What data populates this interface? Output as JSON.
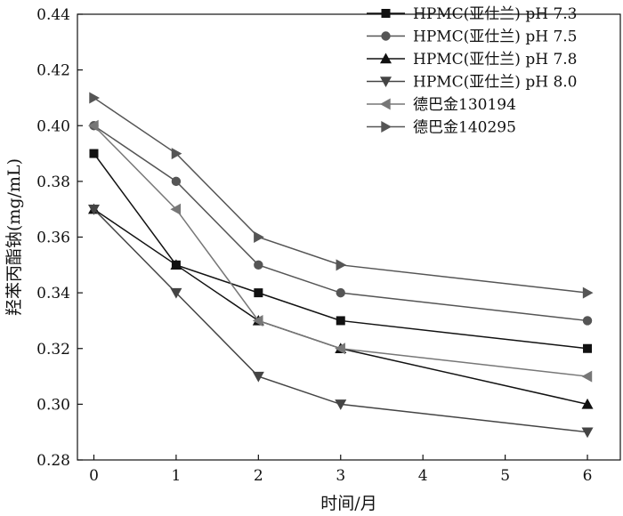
{
  "chart_data": {
    "type": "line",
    "title": "",
    "xlabel": "时间/月",
    "ylabel": "羟苯丙酯钠(mg/mL)",
    "x": [
      0,
      1,
      2,
      3,
      4,
      5,
      6
    ],
    "x_tick_labels": [
      "0",
      "1",
      "2",
      "3",
      "4",
      "5",
      "6"
    ],
    "xlim": [
      -0.2,
      6.4
    ],
    "ylim": [
      0.28,
      0.44
    ],
    "y_ticks": [
      0.28,
      0.3,
      0.32,
      0.34,
      0.36,
      0.38,
      0.4,
      0.42,
      0.44
    ],
    "y_tick_labels": [
      "0.28",
      "0.30",
      "0.32",
      "0.34",
      "0.36",
      "0.38",
      "0.40",
      "0.42",
      "0.44"
    ],
    "grid": false,
    "legend_position": "top-right",
    "series": [
      {
        "name": "HPMC(亚仕兰) pH 7.3",
        "marker": "square",
        "color": "#111111",
        "x": [
          0,
          1,
          2,
          3,
          6
        ],
        "values": [
          0.39,
          0.35,
          0.34,
          0.33,
          0.32
        ]
      },
      {
        "name": "HPMC(亚仕兰) pH 7.5",
        "marker": "circle",
        "color": "#555555",
        "x": [
          0,
          1,
          2,
          3,
          6
        ],
        "values": [
          0.4,
          0.38,
          0.35,
          0.34,
          0.33
        ]
      },
      {
        "name": "HPMC(亚仕兰) pH 7.8",
        "marker": "triangle-up",
        "color": "#111111",
        "x": [
          0,
          1,
          2,
          3,
          6
        ],
        "values": [
          0.37,
          0.35,
          0.33,
          0.32,
          0.3
        ]
      },
      {
        "name": "HPMC(亚仕兰) pH 8.0",
        "marker": "triangle-down",
        "color": "#444444",
        "x": [
          0,
          1,
          2,
          3,
          6
        ],
        "values": [
          0.37,
          0.34,
          0.31,
          0.3,
          0.29
        ]
      },
      {
        "name": "德巴金130194",
        "marker": "triangle-left",
        "color": "#777777",
        "x": [
          0,
          1,
          2,
          3,
          6
        ],
        "values": [
          0.4,
          0.37,
          0.33,
          0.32,
          0.31
        ]
      },
      {
        "name": "德巴金140295",
        "marker": "triangle-right",
        "color": "#555555",
        "x": [
          0,
          1,
          2,
          3,
          6
        ],
        "values": [
          0.41,
          0.39,
          0.36,
          0.35,
          0.34
        ]
      }
    ]
  }
}
